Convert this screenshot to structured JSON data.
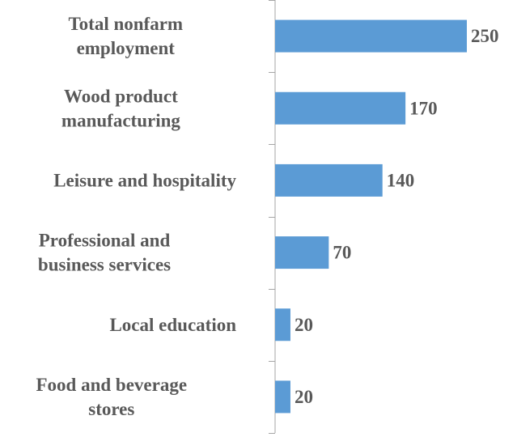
{
  "chart_data": {
    "type": "bar",
    "orientation": "horizontal",
    "categories": [
      [
        "Total nonfarm",
        "employment"
      ],
      [
        "Wood product",
        "manufacturing"
      ],
      [
        "Leisure and hospitality"
      ],
      [
        "Professional and",
        "business services"
      ],
      [
        "Local education"
      ],
      [
        "Food and beverage",
        "stores"
      ]
    ],
    "values": [
      250,
      170,
      140,
      70,
      20,
      20
    ],
    "value_labels": [
      "250",
      "170",
      "140",
      "70",
      "20",
      "20"
    ],
    "xlim": [
      0,
      300
    ],
    "grid": false,
    "legend": "none",
    "bar_color": "#5B9BD5",
    "text_color": "#595959",
    "axis_color": "#A6A6A6"
  }
}
